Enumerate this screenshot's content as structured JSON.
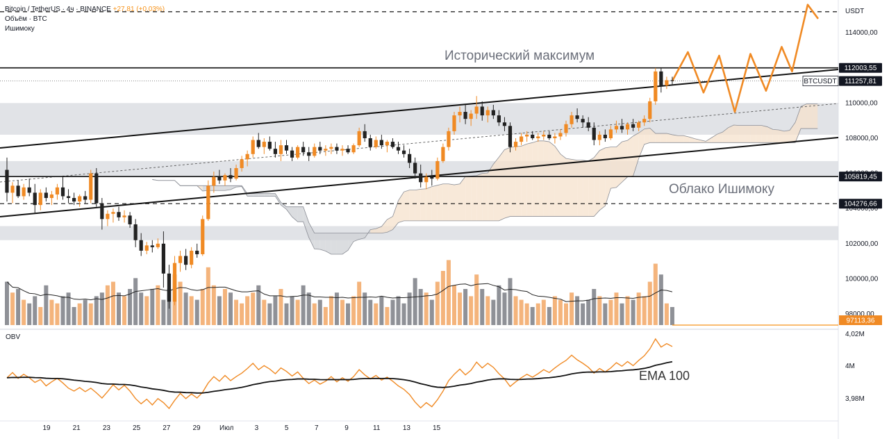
{
  "header": {
    "line1_symbol": "Bitcoin / TetherUS · 4ч · BINANCE",
    "line1_change": "+27,81 (+0,03%)",
    "line2": "Объём · BTC",
    "line3": "Ишимоку"
  },
  "chart_data": {
    "type": "candlestick",
    "symbol": "BTCUSDT",
    "currency": "USDT",
    "price_axis": {
      "ticks": [
        "114000,00",
        "112000,00",
        "110000,00",
        "108000,00",
        "106000,00",
        "104000,00",
        "102000,00",
        "100000,00",
        "98000,00"
      ],
      "ylim": [
        97000,
        115800
      ]
    },
    "x_axis": {
      "ticks": [
        "19",
        "21",
        "23",
        "25",
        "27",
        "29",
        "Июл",
        "3",
        "5",
        "7",
        "9",
        "11",
        "13",
        "15"
      ]
    },
    "levels": [
      {
        "label": "112003,55",
        "value": 112003.55,
        "style": "solid"
      },
      {
        "label": "111257,81",
        "value": 111257.81,
        "style": "dotted",
        "tag": "BTCUSDT"
      },
      {
        "label": "105819,45",
        "value": 105819.45,
        "style": "solid"
      },
      {
        "label": "104276,66",
        "value": 104276.66,
        "style": "dashed"
      },
      {
        "label": "115200",
        "value": 115200,
        "style": "dashed"
      }
    ],
    "volume_last_label": "97113,36",
    "annotations": {
      "ath": "Исторический максимум",
      "cloud": "Облако Ишимоку"
    },
    "obv": {
      "label": "OBV",
      "ticks": [
        "4,02M",
        "4M",
        "3,98M"
      ],
      "ema_label": "EMA 100"
    },
    "candles": [
      [
        106200,
        106900,
        104400,
        104900
      ],
      [
        104900,
        105500,
        104300,
        105300
      ],
      [
        105300,
        105600,
        104600,
        104700
      ],
      [
        104700,
        105400,
        104500,
        105200
      ],
      [
        105200,
        105700,
        104700,
        104900
      ],
      [
        104900,
        105400,
        103700,
        104200
      ],
      [
        104200,
        105100,
        103900,
        104900
      ],
      [
        104900,
        105200,
        104400,
        104600
      ],
      [
        104600,
        105000,
        104200,
        104800
      ],
      [
        104800,
        105400,
        104500,
        105200
      ],
      [
        105200,
        105800,
        104500,
        104700
      ],
      [
        104700,
        105100,
        104300,
        104600
      ],
      [
        104600,
        104900,
        104200,
        104400
      ],
      [
        104400,
        104800,
        104100,
        104700
      ],
      [
        104700,
        105000,
        104300,
        104500
      ],
      [
        104500,
        106200,
        104300,
        106000
      ],
      [
        106000,
        106300,
        104100,
        104300
      ],
      [
        104300,
        104600,
        102800,
        103400
      ],
      [
        103400,
        103900,
        103000,
        103700
      ],
      [
        103700,
        104000,
        103200,
        103800
      ],
      [
        103800,
        104100,
        103300,
        103500
      ],
      [
        103500,
        103900,
        103200,
        103600
      ],
      [
        103600,
        103800,
        102900,
        103100
      ],
      [
        103100,
        103400,
        101800,
        102200
      ],
      [
        102200,
        102600,
        101300,
        101600
      ],
      [
        101600,
        102100,
        101400,
        101900
      ],
      [
        101900,
        102200,
        101500,
        101800
      ],
      [
        101800,
        102300,
        101700,
        102000
      ],
      [
        102000,
        102700,
        99500,
        100300
      ],
      [
        100300,
        100800,
        98300,
        98700
      ],
      [
        98700,
        101300,
        98500,
        100900
      ],
      [
        100900,
        101600,
        100400,
        101300
      ],
      [
        101300,
        101700,
        100500,
        100800
      ],
      [
        100800,
        101800,
        100600,
        101600
      ],
      [
        101600,
        102000,
        101200,
        101400
      ],
      [
        101400,
        103600,
        101300,
        103400
      ],
      [
        103400,
        105600,
        103300,
        105300
      ],
      [
        105300,
        106100,
        104900,
        105800
      ],
      [
        105800,
        106200,
        105400,
        105600
      ],
      [
        105600,
        106000,
        105300,
        105900
      ],
      [
        105900,
        106300,
        105500,
        105700
      ],
      [
        105700,
        106500,
        105600,
        106300
      ],
      [
        106300,
        107000,
        106100,
        106800
      ],
      [
        106800,
        107300,
        106400,
        107100
      ],
      [
        107100,
        108100,
        106900,
        107900
      ],
      [
        107900,
        108300,
        107400,
        107500
      ],
      [
        107500,
        108000,
        107100,
        107800
      ],
      [
        107800,
        108100,
        107300,
        107400
      ],
      [
        107400,
        107800,
        106900,
        107100
      ],
      [
        107100,
        107900,
        106700,
        107600
      ],
      [
        107600,
        107900,
        107100,
        107300
      ],
      [
        107300,
        107500,
        106700,
        106900
      ],
      [
        106900,
        107600,
        106800,
        107500
      ],
      [
        107500,
        107800,
        107000,
        107200
      ],
      [
        107200,
        107500,
        106700,
        107000
      ],
      [
        107000,
        107700,
        106900,
        107500
      ],
      [
        107500,
        107800,
        107100,
        107300
      ],
      [
        107300,
        107600,
        107000,
        107400
      ],
      [
        107400,
        107700,
        107100,
        107500
      ],
      [
        107500,
        107700,
        107100,
        107300
      ],
      [
        107300,
        107600,
        107000,
        107400
      ],
      [
        107400,
        107600,
        107100,
        107200
      ],
      [
        107200,
        107700,
        107100,
        107600
      ],
      [
        107600,
        108600,
        107500,
        108400
      ],
      [
        108400,
        108800,
        107800,
        108000
      ],
      [
        108000,
        108200,
        107300,
        107500
      ],
      [
        107500,
        108100,
        107400,
        107900
      ],
      [
        107900,
        108200,
        107400,
        107600
      ],
      [
        107600,
        107900,
        107200,
        107800
      ],
      [
        107800,
        108000,
        107400,
        107500
      ],
      [
        107500,
        107800,
        107100,
        107300
      ],
      [
        107300,
        107600,
        106900,
        107100
      ],
      [
        107100,
        107400,
        106300,
        106600
      ],
      [
        106600,
        106900,
        105700,
        106000
      ],
      [
        106000,
        106500,
        105200,
        105500
      ],
      [
        105500,
        106000,
        105100,
        105800
      ],
      [
        105800,
        106200,
        105300,
        105700
      ],
      [
        105700,
        106900,
        105600,
        106700
      ],
      [
        106700,
        107700,
        106600,
        107500
      ],
      [
        107500,
        108600,
        107300,
        108400
      ],
      [
        108400,
        109500,
        108200,
        109300
      ],
      [
        109300,
        109800,
        108900,
        109500
      ],
      [
        109500,
        109900,
        108800,
        109100
      ],
      [
        109100,
        109600,
        108700,
        109400
      ],
      [
        109400,
        110400,
        109100,
        109800
      ],
      [
        109800,
        110100,
        109000,
        109300
      ],
      [
        109300,
        109800,
        108900,
        109600
      ],
      [
        109600,
        109900,
        109100,
        109300
      ],
      [
        109300,
        109600,
        108700,
        108900
      ],
      [
        108900,
        109200,
        108400,
        108700
      ],
      [
        108700,
        108900,
        107200,
        107500
      ],
      [
        107500,
        108000,
        107300,
        107800
      ],
      [
        107800,
        108300,
        107600,
        108100
      ],
      [
        108100,
        108400,
        107800,
        108200
      ],
      [
        108200,
        108400,
        107900,
        108000
      ],
      [
        108000,
        108300,
        107800,
        108100
      ],
      [
        108100,
        108400,
        107900,
        108200
      ],
      [
        108200,
        108400,
        107900,
        108000
      ],
      [
        108000,
        108300,
        107700,
        108100
      ],
      [
        108100,
        108500,
        107900,
        108300
      ],
      [
        108300,
        109000,
        108100,
        108800
      ],
      [
        108800,
        109500,
        108600,
        109300
      ],
      [
        109300,
        109700,
        108900,
        109100
      ],
      [
        109100,
        109300,
        108600,
        108900
      ],
      [
        108900,
        109200,
        108400,
        108600
      ],
      [
        108600,
        108900,
        107600,
        107900
      ],
      [
        107900,
        108400,
        107600,
        108200
      ],
      [
        108200,
        108500,
        107800,
        108000
      ],
      [
        108000,
        108700,
        107900,
        108500
      ],
      [
        108500,
        109000,
        108300,
        108700
      ],
      [
        108700,
        109100,
        108300,
        108500
      ],
      [
        108500,
        108900,
        108200,
        108800
      ],
      [
        108800,
        109100,
        108400,
        108600
      ],
      [
        108600,
        109000,
        108400,
        108900
      ],
      [
        108900,
        109300,
        108700,
        109100
      ],
      [
        109100,
        110300,
        108900,
        110100
      ],
      [
        110100,
        112000,
        109900,
        111800
      ],
      [
        111800,
        112000,
        110600,
        111000
      ],
      [
        111000,
        111500,
        110800,
        111300
      ],
      [
        111300,
        111500,
        111000,
        111258
      ]
    ],
    "volumes": [
      12,
      9,
      10,
      7,
      6,
      8,
      5,
      11,
      7,
      6,
      8,
      9,
      5,
      6,
      7,
      6,
      8,
      9,
      11,
      12,
      9,
      8,
      10,
      13,
      9,
      8,
      10,
      11,
      7,
      10,
      14,
      12,
      9,
      8,
      7,
      10,
      16,
      11,
      8,
      10,
      9,
      7,
      6,
      8,
      9,
      11,
      7,
      6,
      8,
      10,
      6,
      8,
      7,
      11,
      9,
      6,
      7,
      5,
      8,
      9,
      7,
      6,
      8,
      12,
      9,
      7,
      6,
      8,
      5,
      7,
      8,
      6,
      9,
      13,
      10,
      9,
      7,
      12,
      15,
      18,
      11,
      9,
      10,
      8,
      14,
      10,
      8,
      7,
      11,
      9,
      13,
      8,
      7,
      6,
      5,
      6,
      7,
      5,
      8,
      7,
      6,
      9,
      8,
      6,
      7,
      10,
      8,
      6,
      7,
      9,
      6,
      8,
      7,
      9,
      8,
      12,
      17,
      14,
      6,
      5
    ],
    "projection": [
      [
        111258,
        "c"
      ],
      [
        112900,
        "+3"
      ],
      [
        110600,
        "+6"
      ],
      [
        112700,
        "+9"
      ],
      [
        109500,
        "+12"
      ],
      [
        112800,
        "+15"
      ],
      [
        110700,
        "+18"
      ],
      [
        113200,
        "+21"
      ],
      [
        111800,
        "+23"
      ],
      [
        115600,
        "+26"
      ],
      [
        114800,
        "+28"
      ]
    ]
  }
}
